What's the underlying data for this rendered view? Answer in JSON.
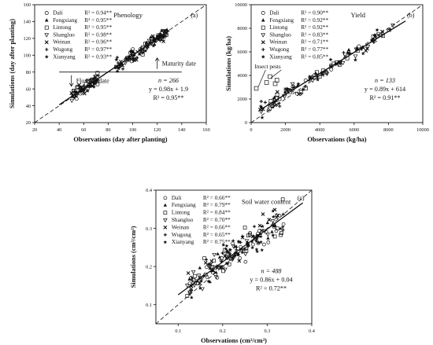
{
  "chart_data": [
    {
      "type": "scatter",
      "panel_label": "(a)",
      "title": "Phenology",
      "xlabel": "Observations (day after planting)",
      "ylabel": "Simulations (day after planting)",
      "xlim": [
        20,
        160
      ],
      "ylim": [
        20,
        160
      ],
      "xticks": [
        20,
        40,
        60,
        80,
        100,
        120,
        140,
        160
      ],
      "yticks": [
        20,
        40,
        60,
        80,
        100,
        120,
        140,
        160
      ],
      "legend": [
        {
          "site": "Dali",
          "r2": "R² = 0.94**",
          "marker": "circle-open"
        },
        {
          "site": "Fengxiang",
          "r2": "R² = 0.95**",
          "marker": "triangle-filled"
        },
        {
          "site": "Lintong",
          "r2": "R² = 0.95**",
          "marker": "square-open"
        },
        {
          "site": "Shangluo",
          "r2": "R² = 0.98**",
          "marker": "triangle-down-open"
        },
        {
          "site": "Weinan",
          "r2": "R² = 0.96**",
          "marker": "x"
        },
        {
          "site": "Wugong",
          "r2": "R² = 0.97**",
          "marker": "plus"
        },
        {
          "site": "Xianyang",
          "r2": "R² = 0.93**",
          "marker": "star"
        }
      ],
      "fit": {
        "slope": 0.98,
        "intercept": 1.9,
        "x_range": [
          40,
          130
        ]
      },
      "stats": [
        "n = 266",
        "y = 0.98x + 1.9",
        "R² = 0.95**"
      ],
      "annotations": {
        "upper": "Maturity date",
        "lower": "Flowing date",
        "hline_y": 80
      },
      "clusters": [
        {
          "xmin": 50,
          "xmax": 72,
          "slope": 0.98,
          "intercept": 1.9,
          "spread": 5,
          "count": 70
        },
        {
          "xmin": 86,
          "xmax": 128,
          "slope": 0.98,
          "intercept": 1.9,
          "spread": 6,
          "count": 120
        }
      ]
    },
    {
      "type": "scatter",
      "panel_label": "(b)",
      "title": "Yield",
      "xlabel": "Observations (kg/ha)",
      "ylabel": "Simulations (kg/ha)",
      "xlim": [
        0,
        10000
      ],
      "ylim": [
        0,
        10000
      ],
      "xticks": [
        0,
        2000,
        4000,
        6000,
        8000,
        10000
      ],
      "yticks": [
        0,
        2000,
        4000,
        6000,
        8000,
        10000
      ],
      "legend": [
        {
          "site": "Dali",
          "r2": "R² = 0.90**",
          "marker": "circle-open"
        },
        {
          "site": "Fengxiang",
          "r2": "R² = 0.92**",
          "marker": "triangle-filled"
        },
        {
          "site": "Lintong",
          "r2": "R² = 0.92**",
          "marker": "square-open"
        },
        {
          "site": "Shangluo",
          "r2": "R² = 0.83**",
          "marker": "triangle-down-open"
        },
        {
          "site": "Weinan",
          "r2": "R² = 0.71**",
          "marker": "x"
        },
        {
          "site": "Wugong",
          "r2": "R² = 0.77**",
          "marker": "plus"
        },
        {
          "site": "Xianyang",
          "r2": "R² = 0.85**",
          "marker": "star"
        }
      ],
      "fit": {
        "slope": 0.89,
        "intercept": 614,
        "x_range": [
          500,
          9000
        ]
      },
      "stats": [
        "n = 133",
        "y = 0.89x + 614",
        "R² = 0.91**"
      ],
      "annotations": {
        "insect": "Insect pests"
      },
      "special_points": [
        [
          300,
          2900
        ],
        [
          1100,
          3900
        ],
        [
          1400,
          3300
        ],
        [
          1500,
          3600
        ],
        [
          900,
          3400
        ]
      ],
      "clusters": [
        {
          "xmin": 500,
          "xmax": 8500,
          "slope": 0.89,
          "intercept": 614,
          "spread": 500,
          "count": 120
        }
      ]
    },
    {
      "type": "scatter",
      "panel_label": "(c)",
      "title": "Soil water content",
      "xlabel": "Observations (cm³/cm³)",
      "ylabel": "Simulations (cm³/cm³)",
      "xlim": [
        0.05,
        0.4
      ],
      "ylim": [
        0.05,
        0.4
      ],
      "xticks": [
        0.1,
        0.2,
        0.3,
        0.4
      ],
      "yticks": [
        0.1,
        0.2,
        0.3,
        0.4
      ],
      "legend": [
        {
          "site": "Dali",
          "r2": "R² = 0.66**",
          "marker": "circle-open"
        },
        {
          "site": "Fengxiang",
          "r2": "R² = 0.79**",
          "marker": "triangle-filled"
        },
        {
          "site": "Lintong",
          "r2": "R² = 0.84**",
          "marker": "square-open"
        },
        {
          "site": "Shangluo",
          "r2": "R² = 0.70**",
          "marker": "triangle-down-open"
        },
        {
          "site": "Weinan",
          "r2": "R² = 0.66**",
          "marker": "x"
        },
        {
          "site": "Wugong",
          "r2": "R² = 0.65**",
          "marker": "plus"
        },
        {
          "site": "Xianyang",
          "r2": "R² = 0.75**",
          "marker": "star"
        }
      ],
      "fit": {
        "slope": 0.86,
        "intercept": 0.04,
        "x_range": [
          0.1,
          0.38
        ]
      },
      "stats": [
        "n = 488",
        "y = 0.86x + 0.04",
        "R² = 0.72**"
      ],
      "clusters": [
        {
          "xmin": 0.12,
          "xmax": 0.34,
          "slope": 0.86,
          "intercept": 0.04,
          "spread": 0.03,
          "count": 200
        }
      ]
    }
  ]
}
